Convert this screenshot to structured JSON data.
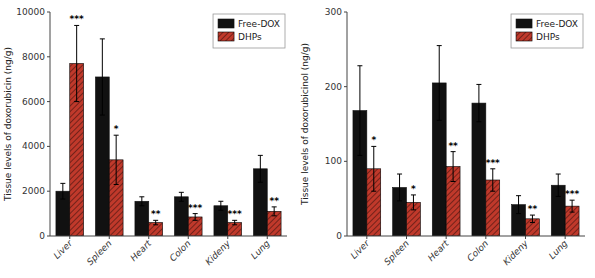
{
  "chart_data": [
    {
      "type": "bar",
      "categories": [
        "Liver",
        "Spleen",
        "Heart",
        "Colon",
        "Kideny",
        "Lung"
      ],
      "y_label": "Tissue levels of doxorubicin (ng/g)",
      "ylim": [
        0,
        10000
      ],
      "yticks": [
        0,
        2000,
        4000,
        6000,
        8000,
        10000
      ],
      "series": [
        {
          "name": "Free-DOX",
          "color": "#111111",
          "values": [
            2000,
            7100,
            1550,
            1750,
            1350,
            3000
          ],
          "errors": [
            350,
            1700,
            200,
            200,
            200,
            600
          ]
        },
        {
          "name": "DHPs",
          "color": "#c0392b",
          "values": [
            7700,
            3400,
            600,
            850,
            600,
            1100
          ],
          "errors": [
            1700,
            1100,
            100,
            150,
            100,
            200
          ]
        }
      ],
      "annotations": [
        "***",
        "*",
        "**",
        "***",
        "***",
        "**"
      ],
      "legend": "upper right",
      "grid": false
    },
    {
      "type": "bar",
      "categories": [
        "Liver",
        "Spleen",
        "Heart",
        "Colon",
        "Kideny",
        "Lung"
      ],
      "y_label": "Tissue levels of doxorubicinol (ng/g)",
      "ylim": [
        0,
        300
      ],
      "yticks": [
        0,
        100,
        200,
        300
      ],
      "series": [
        {
          "name": "Free-DOX",
          "color": "#111111",
          "values": [
            168,
            65,
            205,
            178,
            42,
            68
          ],
          "errors": [
            60,
            18,
            50,
            25,
            12,
            15
          ]
        },
        {
          "name": "DHPs",
          "color": "#c0392b",
          "values": [
            90,
            45,
            93,
            75,
            23,
            40
          ],
          "errors": [
            30,
            10,
            20,
            15,
            5,
            8
          ]
        }
      ],
      "annotations": [
        "*",
        "*",
        "**",
        "***",
        "**",
        "***"
      ],
      "legend": "upper right",
      "grid": false
    }
  ]
}
